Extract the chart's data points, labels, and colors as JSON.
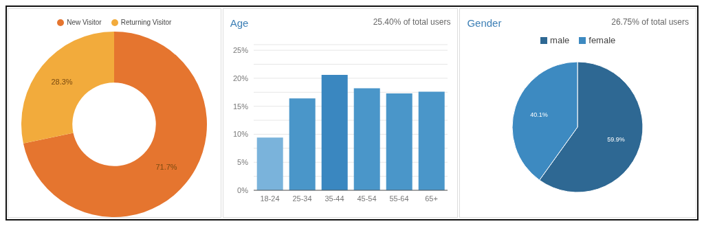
{
  "chart_data": [
    {
      "type": "donut",
      "categories": [
        "New Visitor",
        "Returning Visitor"
      ],
      "values": [
        71.7,
        28.3
      ],
      "colors": [
        "#e5752f",
        "#f2ab3c"
      ],
      "value_labels": [
        "71.7%",
        "28.3%"
      ],
      "legend": "top"
    },
    {
      "type": "bar",
      "title": "Age",
      "subtitle": "25.40% of total users",
      "categories": [
        "18-24",
        "25-34",
        "35-44",
        "45-54",
        "55-64",
        "65+"
      ],
      "values": [
        9.4,
        16.4,
        20.6,
        18.2,
        17.3,
        17.6
      ],
      "colors": [
        "#7ab3db",
        "#4a96c9",
        "#3a87c0",
        "#4a96c9",
        "#4a96c9",
        "#4a96c9"
      ],
      "ylim": [
        0,
        26
      ],
      "yticks": [
        {
          "value": 0,
          "label": "0%"
        },
        {
          "value": 2.5,
          "label": null
        },
        {
          "value": 5,
          "label": "5%"
        },
        {
          "value": 7.5,
          "label": null
        },
        {
          "value": 10,
          "label": "10%"
        },
        {
          "value": 12.5,
          "label": null
        },
        {
          "value": 15,
          "label": "15%"
        },
        {
          "value": 17.5,
          "label": null
        },
        {
          "value": 20,
          "label": "20%"
        },
        {
          "value": 22.5,
          "label": null
        },
        {
          "value": 25,
          "label": "25%"
        }
      ],
      "grid": "y"
    },
    {
      "type": "pie",
      "title": "Gender",
      "subtitle": "26.75% of total users",
      "categories": [
        "male",
        "female"
      ],
      "values": [
        59.9,
        40.1
      ],
      "colors": [
        "#2e6893",
        "#3d8ac1"
      ],
      "value_labels": [
        "59.9%",
        "40.1%"
      ],
      "legend": "top"
    }
  ]
}
